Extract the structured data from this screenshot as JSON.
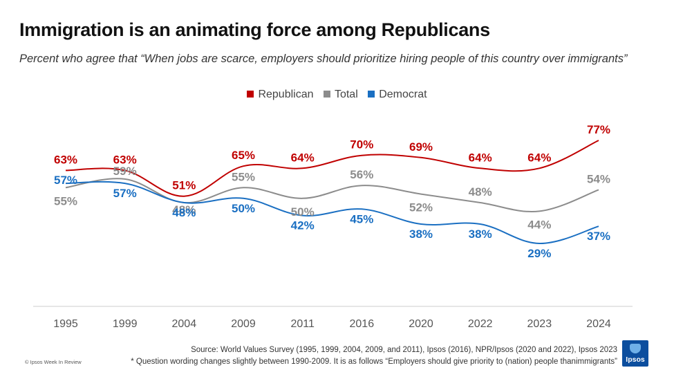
{
  "title": "Immigration is an animating force among Republicans",
  "subtitle": "Percent who agree that “When jobs are scarce, employers should prioritize hiring people of this country over immigrants”",
  "legend": [
    {
      "label": "Republican",
      "color": "#c00000"
    },
    {
      "label": "Total",
      "color": "#8c8c8c"
    },
    {
      "label": "Democrat",
      "color": "#1a6fc2"
    }
  ],
  "chart_data": {
    "type": "line",
    "title": "Immigration is an animating force among Republicans",
    "x": [
      "1995",
      "1999",
      "2004",
      "2009",
      "2011",
      "2016",
      "2020",
      "2022",
      "2023",
      "2024"
    ],
    "xlabel": "",
    "ylabel": "",
    "ylim": [
      0,
      100
    ],
    "grid": false,
    "legend_position": "top-center",
    "series": [
      {
        "name": "Republican",
        "color": "#c00000",
        "values": [
          63,
          63,
          51,
          65,
          64,
          70,
          69,
          64,
          64,
          77
        ],
        "labels": [
          "63%",
          "63%",
          "51%",
          "65%",
          "64%",
          "70%",
          "69%",
          "64%",
          "64%",
          "77%"
        ]
      },
      {
        "name": "Total",
        "color": "#8c8c8c",
        "values": [
          55,
          59,
          48,
          55,
          50,
          56,
          52,
          48,
          44,
          54
        ],
        "labels": [
          "55%",
          "59%",
          "48%",
          "55%",
          "50%",
          "56%",
          "52%",
          "48%",
          "44%",
          "54%"
        ]
      },
      {
        "name": "Democrat",
        "color": "#1a6fc2",
        "values": [
          57,
          57,
          48,
          50,
          42,
          45,
          38,
          38,
          29,
          37
        ],
        "labels": [
          "57%",
          "57%",
          "48%",
          "50%",
          "42%",
          "45%",
          "38%",
          "38%",
          "29%",
          "37%"
        ]
      }
    ]
  },
  "source": {
    "line1": "Source: World Values Survey (1995, 1999, 2004, 2009, and 2011), Ipsos (2016), NPR/Ipsos (2020 and 2022), Ipsos 2023",
    "line2": "* Question wording changes slightly between 1990-2009. It is as follows “Employers should give priority to (nation) people thanimmigrants”"
  },
  "copyright": "© Ipsos Week In Review",
  "logo_text": "Ipsos"
}
